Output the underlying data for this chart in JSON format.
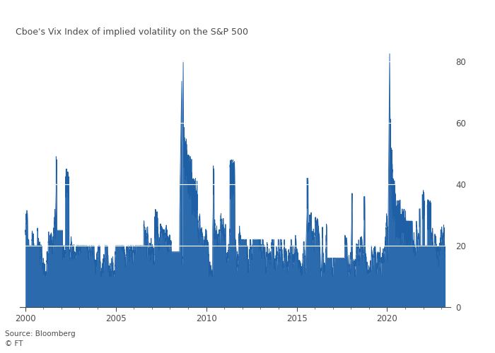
{
  "title": "Cboe's Vix Index of implied volatility on the S&P 500",
  "source": "Source: Bloomberg",
  "copyright": "© FT",
  "line_color": "#1f5fa6",
  "fill_color": "#2a6aad",
  "background_color": "#ffffff",
  "plot_bg_color": "#ffffff",
  "text_color": "#4a4a4a",
  "grid_color": "#cccccc",
  "ylim": [
    0,
    85
  ],
  "yticks": [
    0,
    20,
    40,
    60,
    80
  ],
  "xtick_positions": [
    2000,
    2005,
    2010,
    2015,
    2020
  ],
  "xlim_start": 1999.7,
  "xlim_end": 2023.5
}
